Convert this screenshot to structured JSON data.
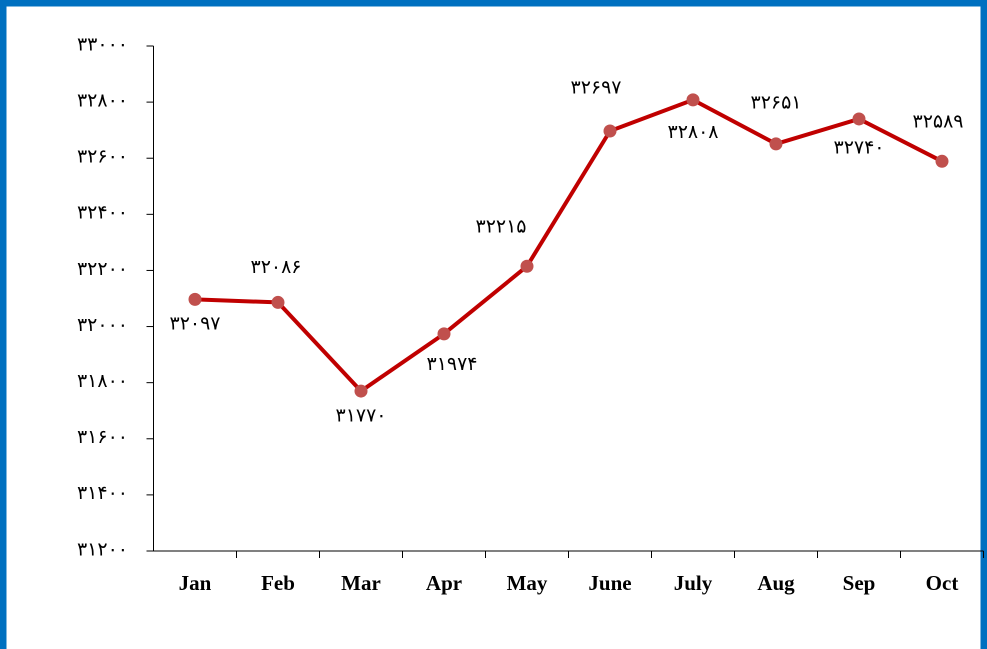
{
  "chart_data": {
    "type": "line",
    "categories": [
      "Jan",
      "Feb",
      "Mar",
      "Apr",
      "May",
      "June",
      "July",
      "Aug",
      "Sep",
      "Oct"
    ],
    "series": [
      {
        "color": "#c00000",
        "marker_color": "#c0504d",
        "values": [
          32097,
          32086,
          31770,
          31974,
          32215,
          32697,
          32808,
          32651,
          32740,
          32589
        ],
        "value_labels": [
          "۳۲۰۹۷",
          "۳۲۰۸۶",
          "۳۱۷۷۰",
          "۳۱۹۷۴",
          "۳۲۲۱۵",
          "۳۲۶۹۷",
          "۳۲۸۰۸",
          "۳۲۶۵۱",
          "۳۲۷۴۰",
          "۳۲۵۸۹"
        ]
      }
    ],
    "ylim": [
      31200,
      33000
    ],
    "yticks": [
      {
        "value": 31200,
        "label": "۳۱۲۰۰"
      },
      {
        "value": 31400,
        "label": "۳۱۴۰۰"
      },
      {
        "value": 31600,
        "label": "۳۱۶۰۰"
      },
      {
        "value": 31800,
        "label": "۳۱۸۰۰"
      },
      {
        "value": 32000,
        "label": "۳۲۰۰۰"
      },
      {
        "value": 32200,
        "label": "۳۲۲۰۰"
      },
      {
        "value": 32400,
        "label": "۳۲۴۰۰"
      },
      {
        "value": 32600,
        "label": "۳۲۶۰۰"
      },
      {
        "value": 32800,
        "label": "۳۲۸۰۰"
      },
      {
        "value": 33000,
        "label": "۳۳۰۰۰"
      }
    ],
    "grid": false
  }
}
